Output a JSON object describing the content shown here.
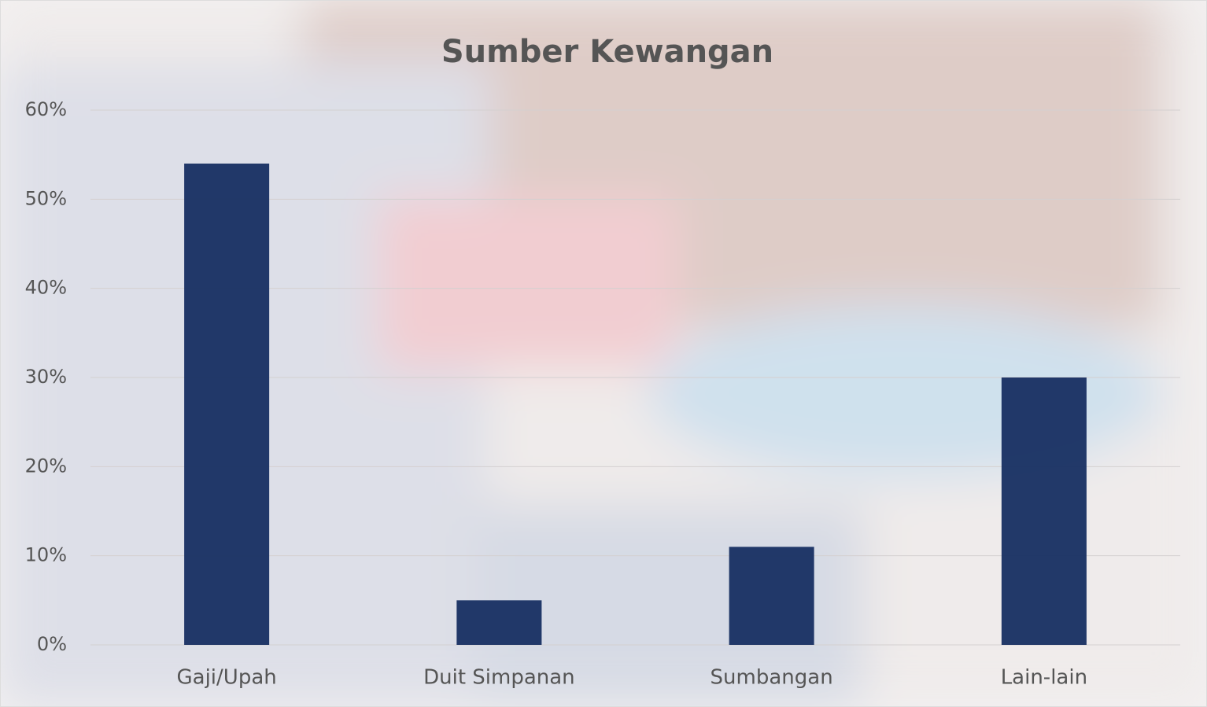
{
  "chart_data": {
    "type": "bar",
    "title": "Sumber Kewangan",
    "categories": [
      "Gaji/Upah",
      "Duit Simpanan",
      "Sumbangan",
      "Lain-lain"
    ],
    "values": [
      54,
      5,
      11,
      30
    ],
    "color": "#1b3364",
    "ylim": [
      0,
      60
    ],
    "yticks": [
      {
        "value": 0,
        "label": "0%"
      },
      {
        "value": 10,
        "label": "10%"
      },
      {
        "value": 20,
        "label": "20%"
      },
      {
        "value": 30,
        "label": "30%"
      },
      {
        "value": 40,
        "label": "40%"
      },
      {
        "value": 50,
        "label": "50%"
      },
      {
        "value": 60,
        "label": "60%"
      }
    ],
    "grid": true
  }
}
